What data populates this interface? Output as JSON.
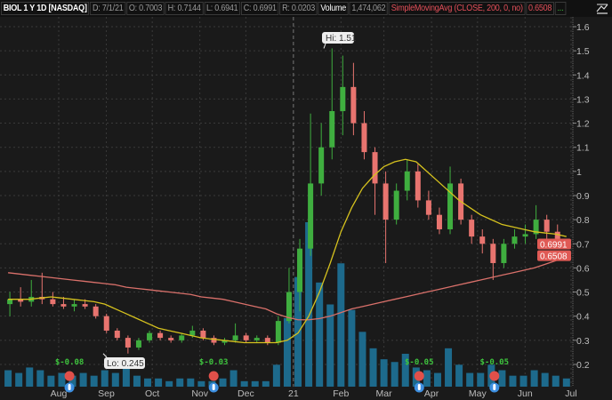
{
  "header": {
    "symbol": "BIOL 1 Y 1D [NASDAQ]",
    "date": "D: 7/1/21",
    "open": "O: 0.7003",
    "high": "H: 0.7144",
    "low": "L: 0.6941",
    "close": "C: 0.6991",
    "range": "R: 0.0203",
    "volume_label": "Volume",
    "volume_value": "1,474,062",
    "study_label": "SimpleMovingAvg (CLOSE, 200, 0, no)",
    "study_value": "0.6508",
    "more": "...",
    "icon": "drawing-tool-icon"
  },
  "colors": {
    "up": "#3fae3f",
    "down": "#e8746f",
    "sma50": "#d6c21e",
    "sma200": "#d9706a",
    "volume": "#1d6a8c",
    "background": "#1a1a1a"
  },
  "chart_data": {
    "type": "candlestick",
    "dates": [
      "2020-06-29",
      "2020-07-06",
      "2020-07-13",
      "2020-07-20",
      "2020-07-27",
      "2020-08-03",
      "2020-08-10",
      "2020-08-17",
      "2020-08-24",
      "2020-08-31",
      "2020-09-07",
      "2020-09-14",
      "2020-09-21",
      "2020-09-28",
      "2020-10-05",
      "2020-10-12",
      "2020-10-19",
      "2020-10-26",
      "2020-11-02",
      "2020-11-09",
      "2020-11-16",
      "2020-11-23",
      "2020-11-30",
      "2020-12-07",
      "2020-12-14",
      "2020-12-21",
      "2020-12-28",
      "2021-01-04",
      "2021-01-11",
      "2021-01-18",
      "2021-01-25",
      "2021-02-01",
      "2021-02-08",
      "2021-02-15",
      "2021-02-22",
      "2021-03-01",
      "2021-03-08",
      "2021-03-15",
      "2021-03-22",
      "2021-03-29",
      "2021-04-05",
      "2021-04-12",
      "2021-04-19",
      "2021-04-26",
      "2021-05-03",
      "2021-05-10",
      "2021-05-17",
      "2021-05-24",
      "2021-05-31",
      "2021-06-07",
      "2021-06-14",
      "2021-06-21",
      "2021-06-28"
    ],
    "ohlc": [
      [
        0.45,
        0.5,
        0.4,
        0.47
      ],
      [
        0.47,
        0.52,
        0.44,
        0.46
      ],
      [
        0.46,
        0.55,
        0.44,
        0.48
      ],
      [
        0.48,
        0.58,
        0.45,
        0.47
      ],
      [
        0.47,
        0.5,
        0.44,
        0.45
      ],
      [
        0.45,
        0.48,
        0.43,
        0.44
      ],
      [
        0.44,
        0.47,
        0.42,
        0.45
      ],
      [
        0.45,
        0.47,
        0.43,
        0.44
      ],
      [
        0.44,
        0.45,
        0.39,
        0.4
      ],
      [
        0.4,
        0.41,
        0.33,
        0.34
      ],
      [
        0.34,
        0.35,
        0.3,
        0.31
      ],
      [
        0.31,
        0.32,
        0.245,
        0.27
      ],
      [
        0.27,
        0.31,
        0.26,
        0.3
      ],
      [
        0.3,
        0.34,
        0.29,
        0.33
      ],
      [
        0.33,
        0.34,
        0.3,
        0.31
      ],
      [
        0.31,
        0.32,
        0.29,
        0.3
      ],
      [
        0.3,
        0.33,
        0.29,
        0.32
      ],
      [
        0.32,
        0.36,
        0.31,
        0.34
      ],
      [
        0.34,
        0.35,
        0.3,
        0.31
      ],
      [
        0.31,
        0.32,
        0.28,
        0.29
      ],
      [
        0.29,
        0.31,
        0.28,
        0.3
      ],
      [
        0.3,
        0.37,
        0.29,
        0.32
      ],
      [
        0.32,
        0.33,
        0.29,
        0.3
      ],
      [
        0.3,
        0.32,
        0.29,
        0.31
      ],
      [
        0.31,
        0.32,
        0.28,
        0.29
      ],
      [
        0.29,
        0.4,
        0.28,
        0.38
      ],
      [
        0.38,
        0.6,
        0.37,
        0.5
      ],
      [
        0.5,
        0.72,
        0.42,
        0.68
      ],
      [
        0.68,
        1.24,
        0.65,
        0.95
      ],
      [
        0.95,
        1.2,
        0.9,
        1.1
      ],
      [
        1.1,
        1.51,
        1.05,
        1.25
      ],
      [
        1.25,
        1.48,
        1.15,
        1.35
      ],
      [
        1.35,
        1.45,
        1.15,
        1.2
      ],
      [
        1.2,
        1.25,
        1.05,
        1.08
      ],
      [
        1.08,
        1.1,
        0.82,
        0.95
      ],
      [
        0.95,
        1.0,
        0.62,
        0.8
      ],
      [
        0.8,
        0.95,
        0.78,
        0.92
      ],
      [
        0.92,
        1.05,
        0.88,
        1.0
      ],
      [
        1.0,
        1.03,
        0.85,
        0.88
      ],
      [
        0.88,
        0.92,
        0.8,
        0.82
      ],
      [
        0.82,
        0.85,
        0.74,
        0.76
      ],
      [
        0.76,
        1.02,
        0.74,
        0.95
      ],
      [
        0.95,
        0.97,
        0.78,
        0.8
      ],
      [
        0.8,
        0.82,
        0.7,
        0.73
      ],
      [
        0.73,
        0.76,
        0.66,
        0.7
      ],
      [
        0.7,
        0.72,
        0.55,
        0.62
      ],
      [
        0.62,
        0.72,
        0.6,
        0.7
      ],
      [
        0.7,
        0.76,
        0.68,
        0.73
      ],
      [
        0.73,
        0.78,
        0.7,
        0.74
      ],
      [
        0.74,
        0.86,
        0.72,
        0.8
      ],
      [
        0.8,
        0.82,
        0.72,
        0.75
      ],
      [
        0.75,
        0.78,
        0.7,
        0.72
      ],
      [
        0.7003,
        0.7144,
        0.6941,
        0.6991
      ]
    ],
    "volume": [
      6,
      5,
      7,
      6,
      4,
      5,
      4,
      5,
      4,
      6,
      5,
      8,
      4,
      3,
      3,
      2,
      3,
      3,
      2,
      2,
      3,
      6,
      2,
      2,
      2,
      8,
      25,
      40,
      60,
      38,
      30,
      45,
      28,
      20,
      14,
      10,
      9,
      12,
      7,
      6,
      5,
      14,
      8,
      5,
      5,
      8,
      6,
      4,
      4,
      6,
      5,
      4,
      3
    ],
    "sma50": [
      0.47,
      0.47,
      0.47,
      0.475,
      0.48,
      0.475,
      0.47,
      0.465,
      0.46,
      0.45,
      0.43,
      0.41,
      0.39,
      0.37,
      0.35,
      0.34,
      0.33,
      0.32,
      0.31,
      0.305,
      0.3,
      0.295,
      0.29,
      0.29,
      0.29,
      0.29,
      0.3,
      0.33,
      0.4,
      0.5,
      0.62,
      0.75,
      0.85,
      0.93,
      0.98,
      1.02,
      1.04,
      1.05,
      1.04,
      1.0,
      0.96,
      0.92,
      0.88,
      0.85,
      0.82,
      0.8,
      0.78,
      0.77,
      0.76,
      0.75,
      0.745,
      0.74,
      0.73
    ],
    "sma200": [
      0.58,
      0.575,
      0.57,
      0.565,
      0.56,
      0.555,
      0.55,
      0.545,
      0.54,
      0.535,
      0.53,
      0.52,
      0.515,
      0.51,
      0.505,
      0.5,
      0.495,
      0.49,
      0.48,
      0.475,
      0.47,
      0.46,
      0.45,
      0.44,
      0.43,
      0.41,
      0.395,
      0.385,
      0.385,
      0.39,
      0.4,
      0.415,
      0.43,
      0.44,
      0.45,
      0.46,
      0.47,
      0.48,
      0.49,
      0.5,
      0.51,
      0.52,
      0.53,
      0.54,
      0.55,
      0.56,
      0.57,
      0.58,
      0.59,
      0.6,
      0.615,
      0.63,
      0.6508
    ],
    "ylim": [
      0.15,
      1.65
    ],
    "y_ticks": [
      "1.6",
      "1.5",
      "1.4",
      "1.3",
      "1.2",
      "1.1",
      "1",
      "0.9",
      "0.8",
      "0.7",
      "0.6",
      "0.5",
      "0.4",
      "0.3",
      "0.2"
    ],
    "x_ticks": [
      {
        "label": "Aug",
        "date": "2020-08-01"
      },
      {
        "label": "Sep",
        "date": "2020-09-01"
      },
      {
        "label": "Oct",
        "date": "2020-10-01"
      },
      {
        "label": "Nov",
        "date": "2020-11-01"
      },
      {
        "label": "Dec",
        "date": "2020-12-01"
      },
      {
        "label": "21",
        "date": "2021-01-01"
      },
      {
        "label": "Feb",
        "date": "2021-02-01"
      },
      {
        "label": "Mar",
        "date": "2021-03-01"
      },
      {
        "label": "Apr",
        "date": "2021-04-01"
      },
      {
        "label": "May",
        "date": "2021-05-01"
      },
      {
        "label": "Jun",
        "date": "2021-06-01"
      },
      {
        "label": "Jul",
        "date": "2021-07-01"
      }
    ],
    "last_price_tag": "0.6991",
    "sma_tag": "0.6508",
    "hi_label": "Hi: 1.51",
    "lo_label": "Lo: 0.245",
    "dividends": [
      {
        "label": "$-0.08",
        "date": "2020-08-08"
      },
      {
        "label": "$-0.03",
        "date": "2020-11-10"
      },
      {
        "label": "$-0.05",
        "date": "2021-03-24"
      },
      {
        "label": "$-0.05",
        "date": "2021-05-12"
      }
    ],
    "grid": true
  }
}
